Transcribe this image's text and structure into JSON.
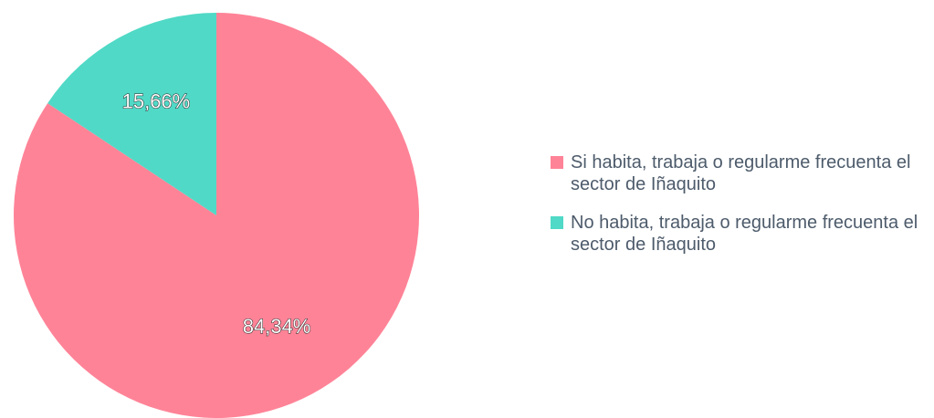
{
  "chart_data": {
    "type": "pie",
    "categories": [
      "Si habita, trabaja o regularme frecuenta el sector de Iñaquito",
      "No habita, trabaja o regularme frecuenta el sector de Iñaquito"
    ],
    "values": [
      84.34,
      15.66
    ],
    "value_labels": [
      "84,34%",
      "15,66%"
    ],
    "colors": [
      "#ff8397",
      "#50d9c6"
    ],
    "legend": "right"
  }
}
